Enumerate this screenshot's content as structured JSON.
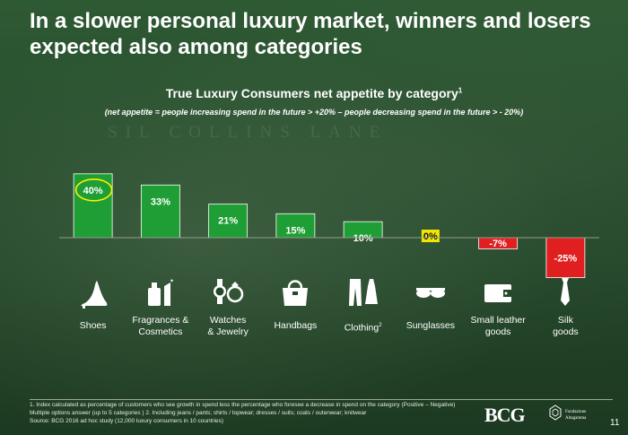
{
  "title": "In a slower personal luxury market, winners and losers expected also among categories",
  "background_text": "SIL COLLINS LANE",
  "chart_data": {
    "type": "bar",
    "title": "True Luxury Consumers net appetite by category",
    "title_sup": "1",
    "subtitle": "(net appetite = people increasing spend in the future > +20% – people decreasing spend in the future > - 20%)",
    "categories": [
      "Shoes",
      "Fragrances & Cosmetics",
      "Watches & Jewelry",
      "Handbags",
      "Clothing",
      "Sunglasses",
      "Small leather goods",
      "Silk goods"
    ],
    "values": [
      40,
      33,
      21,
      15,
      10,
      0,
      -7,
      -25
    ],
    "labels": [
      "40%",
      "33%",
      "21%",
      "15%",
      "10%",
      "0%",
      "-7%",
      "-25%"
    ],
    "highlight_index": 0,
    "ylim": [
      -25,
      40
    ],
    "colors": {
      "positive": "#1e9e34",
      "negative": "#e02020",
      "zero": "#f2e600",
      "highlight": "#ffee00"
    }
  },
  "category_labels": [
    {
      "text": "Shoes",
      "sup": ""
    },
    {
      "text": "Fragrances &\nCosmetics",
      "sup": ""
    },
    {
      "text": "Watches\n& Jewelry",
      "sup": ""
    },
    {
      "text": "Handbags",
      "sup": ""
    },
    {
      "text": "Clothing",
      "sup": "2"
    },
    {
      "text": "Sunglasses",
      "sup": ""
    },
    {
      "text": "Small leather\ngoods",
      "sup": ""
    },
    {
      "text": "Silk\ngoods",
      "sup": ""
    }
  ],
  "icons": [
    "high-heel-icon",
    "perfume-lipstick-icon",
    "watch-ring-icon",
    "handbag-icon",
    "clothing-icon",
    "sunglasses-icon",
    "wallet-icon",
    "tie-icon"
  ],
  "footnotes": [
    "1. Index calculated as percentage of customers who see growth in spend less the percentage who foresee a decrease in spend on the category (Positive – Negative)",
    "Multiple options answer (up to 5 categories )    2. Including jeans / pants; shirts / topwear; dresses / suits; coats / outerwear; knitwear",
    "Source: BCG 2016 ad hoc study (12,000 luxury consumers in 10 countries)"
  ],
  "logo_bcg": "BCG",
  "logo_altagamma": "Fondazione Altagamma",
  "page_number": "11"
}
